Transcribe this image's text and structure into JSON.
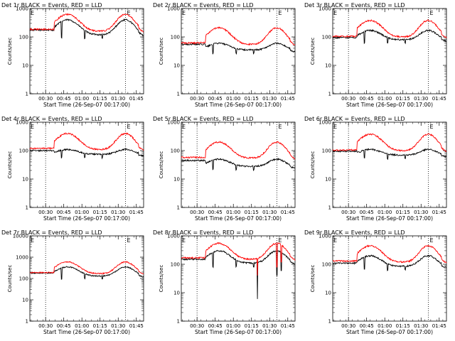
{
  "chart_data": [
    {
      "type": "line",
      "title": "Det 1r BLACK = Events, RED = LLD",
      "xlabel": "Start Time (26-Sep-07 00:17:00)",
      "ylabel": "Counts/sec",
      "yscale": "log",
      "ylim": [
        1,
        1000
      ],
      "xlim": [
        0.283,
        1.85
      ],
      "y_tick_labels": [
        "1",
        "10",
        "100",
        "1000"
      ],
      "x_tick_labels": [
        "00:30",
        "00:45",
        "01:00",
        "01:15",
        "01:30",
        "01:45"
      ],
      "x_ticks": [
        0.5,
        0.75,
        1.0,
        1.25,
        1.5,
        1.75
      ],
      "vlines": [
        0.5,
        1.6
      ],
      "marker": {
        "label": "E",
        "x": 1.61
      },
      "grid": false,
      "legend": "none",
      "series": [
        {
          "name": "BLACK",
          "color": "#000000",
          "base": 175,
          "low": 120,
          "peak": 400
        },
        {
          "name": "RED",
          "color": "#ff0000",
          "base": 185,
          "low": 160,
          "peak": 620
        }
      ]
    },
    {
      "type": "line",
      "title": "Det 2r BLACK = Events, RED = LLD",
      "xlabel": "Start Time (26-Sep-07 00:17:00)",
      "ylabel": "Counts/sec",
      "yscale": "log",
      "ylim": [
        1,
        1000
      ],
      "xlim": [
        0.283,
        1.85
      ],
      "y_tick_labels": [
        "1",
        "10",
        "100",
        "1000"
      ],
      "x_tick_labels": [
        "00:30",
        "00:45",
        "01:00",
        "01:15",
        "01:30",
        "01:45"
      ],
      "x_ticks": [
        0.5,
        0.75,
        1.0,
        1.25,
        1.5,
        1.75
      ],
      "vlines": [
        0.5,
        1.6
      ],
      "marker": {
        "label": "E",
        "x": 1.61
      },
      "grid": false,
      "legend": "none",
      "series": [
        {
          "name": "BLACK",
          "color": "#000000",
          "base": 55,
          "low": 35,
          "peak": 60
        },
        {
          "name": "RED",
          "color": "#ff0000",
          "base": 62,
          "low": 55,
          "peak": 210
        }
      ]
    },
    {
      "type": "line",
      "title": "Det 3r BLACK = Events, RED = LLD",
      "xlabel": "Start Time (26-Sep-07 00:17:00)",
      "ylabel": "Counts/sec",
      "yscale": "log",
      "ylim": [
        1,
        1000
      ],
      "xlim": [
        0.283,
        1.85
      ],
      "y_tick_labels": [
        "1",
        "10",
        "100",
        "1000"
      ],
      "x_tick_labels": [
        "00:30",
        "00:45",
        "01:00",
        "01:15",
        "01:30",
        "01:45"
      ],
      "x_ticks": [
        0.5,
        0.75,
        1.0,
        1.25,
        1.5,
        1.75
      ],
      "vlines": [
        0.5,
        1.6
      ],
      "marker": {
        "label": "E",
        "x": 1.61
      },
      "grid": false,
      "legend": "none",
      "series": [
        {
          "name": "BLACK",
          "color": "#000000",
          "base": 95,
          "low": 80,
          "peak": 170
        },
        {
          "name": "RED",
          "color": "#ff0000",
          "base": 105,
          "low": 100,
          "peak": 380
        }
      ]
    },
    {
      "type": "line",
      "title": "Det 4r BLACK = Events, RED = LLD",
      "xlabel": "Start Time (26-Sep-07 00:17:00)",
      "ylabel": "Counts/sec",
      "yscale": "log",
      "ylim": [
        1,
        1000
      ],
      "xlim": [
        0.283,
        1.85
      ],
      "y_tick_labels": [
        "1",
        "10",
        "100",
        "1000"
      ],
      "x_tick_labels": [
        "00:30",
        "00:45",
        "01:00",
        "01:15",
        "01:30",
        "01:45"
      ],
      "x_ticks": [
        0.5,
        0.75,
        1.0,
        1.25,
        1.5,
        1.75
      ],
      "vlines": [
        0.5,
        1.6
      ],
      "marker": {
        "label": "E",
        "x": 1.61
      },
      "grid": false,
      "legend": "none",
      "series": [
        {
          "name": "BLACK",
          "color": "#000000",
          "base": 100,
          "low": 75,
          "peak": 110
        },
        {
          "name": "RED",
          "color": "#ff0000",
          "base": 120,
          "low": 110,
          "peak": 400
        }
      ]
    },
    {
      "type": "line",
      "title": "Det 5r BLACK = Events, RED = LLD",
      "xlabel": "Start Time (26-Sep-07 00:17:00)",
      "ylabel": "Counts/sec",
      "yscale": "log",
      "ylim": [
        1,
        1000
      ],
      "xlim": [
        0.283,
        1.85
      ],
      "y_tick_labels": [
        "1",
        "10",
        "100",
        "1000"
      ],
      "x_tick_labels": [
        "00:30",
        "00:45",
        "01:00",
        "01:15",
        "01:30",
        "01:45"
      ],
      "x_ticks": [
        0.5,
        0.75,
        1.0,
        1.25,
        1.5,
        1.75
      ],
      "vlines": [
        0.5,
        1.6
      ],
      "marker": {
        "label": "E",
        "x": 1.61
      },
      "grid": false,
      "legend": "none",
      "series": [
        {
          "name": "BLACK",
          "color": "#000000",
          "base": 45,
          "low": 28,
          "peak": 50
        },
        {
          "name": "RED",
          "color": "#ff0000",
          "base": 58,
          "low": 55,
          "peak": 200
        }
      ]
    },
    {
      "type": "line",
      "title": "Det 6r BLACK = Events, RED = LLD",
      "xlabel": "Start Time (26-Sep-07 00:17:00)",
      "ylabel": "Counts/sec",
      "yscale": "log",
      "ylim": [
        1,
        1000
      ],
      "xlim": [
        0.283,
        1.85
      ],
      "y_tick_labels": [
        "1",
        "10",
        "100",
        "1000"
      ],
      "x_tick_labels": [
        "00:30",
        "00:45",
        "01:00",
        "01:15",
        "01:30",
        "01:45"
      ],
      "x_ticks": [
        0.5,
        0.75,
        1.0,
        1.25,
        1.5,
        1.75
      ],
      "vlines": [
        0.5,
        1.6
      ],
      "marker": {
        "label": "E",
        "x": 1.61
      },
      "grid": false,
      "legend": "none",
      "series": [
        {
          "name": "BLACK",
          "color": "#000000",
          "base": 95,
          "low": 70,
          "peak": 110
        },
        {
          "name": "RED",
          "color": "#ff0000",
          "base": 105,
          "low": 100,
          "peak": 380
        }
      ]
    },
    {
      "type": "line",
      "title": "Det 7r BLACK = Events, RED = LLD",
      "xlabel": "Start Time (26-Sep-07 00:17:00)",
      "ylabel": "Counts/sec",
      "yscale": "log",
      "ylim": [
        1,
        10000
      ],
      "xlim": [
        0.283,
        1.85
      ],
      "y_tick_labels": [
        "1",
        "10",
        "100",
        "1000",
        "10000"
      ],
      "x_tick_labels": [
        "00:30",
        "00:45",
        "01:00",
        "01:15",
        "01:30",
        "01:45"
      ],
      "x_ticks": [
        0.5,
        0.75,
        1.0,
        1.25,
        1.5,
        1.75
      ],
      "vlines": [
        0.5,
        1.6
      ],
      "marker": {
        "label": "E",
        "x": 1.61
      },
      "grid": false,
      "legend": "none",
      "series": [
        {
          "name": "BLACK",
          "color": "#000000",
          "base": 180,
          "low": 130,
          "peak": 350
        },
        {
          "name": "RED",
          "color": "#ff0000",
          "base": 190,
          "low": 170,
          "peak": 600
        }
      ]
    },
    {
      "type": "line",
      "title": "Det 8r BLACK = Events, RED = LLD",
      "xlabel": "Start Time (26-Sep-07 00:17:00)",
      "ylabel": "Counts/sec",
      "yscale": "log",
      "ylim": [
        1,
        1000
      ],
      "xlim": [
        0.283,
        1.85
      ],
      "y_tick_labels": [
        "1",
        "10",
        "100",
        "1000"
      ],
      "x_tick_labels": [
        "00:30",
        "00:45",
        "01:00",
        "01:15",
        "01:30",
        "01:45"
      ],
      "x_ticks": [
        0.5,
        0.75,
        1.0,
        1.25,
        1.5,
        1.75
      ],
      "vlines": [
        0.5,
        1.6
      ],
      "marker": {
        "label": "E",
        "x": 1.61
      },
      "grid": false,
      "legend": "none",
      "spikes": [
        {
          "x": 1.33,
          "black": 6,
          "red": 40
        },
        {
          "x": 1.6,
          "black": 40,
          "red": 80
        },
        {
          "x": 1.66,
          "black": 60,
          "red": 120
        }
      ],
      "series": [
        {
          "name": "BLACK",
          "color": "#000000",
          "base": 150,
          "low": 110,
          "peak": 300
        },
        {
          "name": "RED",
          "color": "#ff0000",
          "base": 170,
          "low": 150,
          "peak": 550
        }
      ]
    },
    {
      "type": "line",
      "title": "Det 9r BLACK = Events, RED = LLD",
      "xlabel": "Start Time (26-Sep-07 00:17:00)",
      "ylabel": "Counts/sec",
      "yscale": "log",
      "ylim": [
        1,
        1000
      ],
      "xlim": [
        0.283,
        1.85
      ],
      "y_tick_labels": [
        "1",
        "10",
        "100",
        "1000"
      ],
      "x_tick_labels": [
        "00:30",
        "00:45",
        "01:00",
        "01:15",
        "01:30",
        "01:45"
      ],
      "x_ticks": [
        0.5,
        0.75,
        1.0,
        1.25,
        1.5,
        1.75
      ],
      "vlines": [
        0.5,
        1.6
      ],
      "marker": {
        "label": "E",
        "x": 1.61
      },
      "grid": false,
      "legend": "none",
      "series": [
        {
          "name": "BLACK",
          "color": "#000000",
          "base": 110,
          "low": 85,
          "peak": 200
        },
        {
          "name": "RED",
          "color": "#ff0000",
          "base": 130,
          "low": 120,
          "peak": 450
        }
      ]
    }
  ]
}
